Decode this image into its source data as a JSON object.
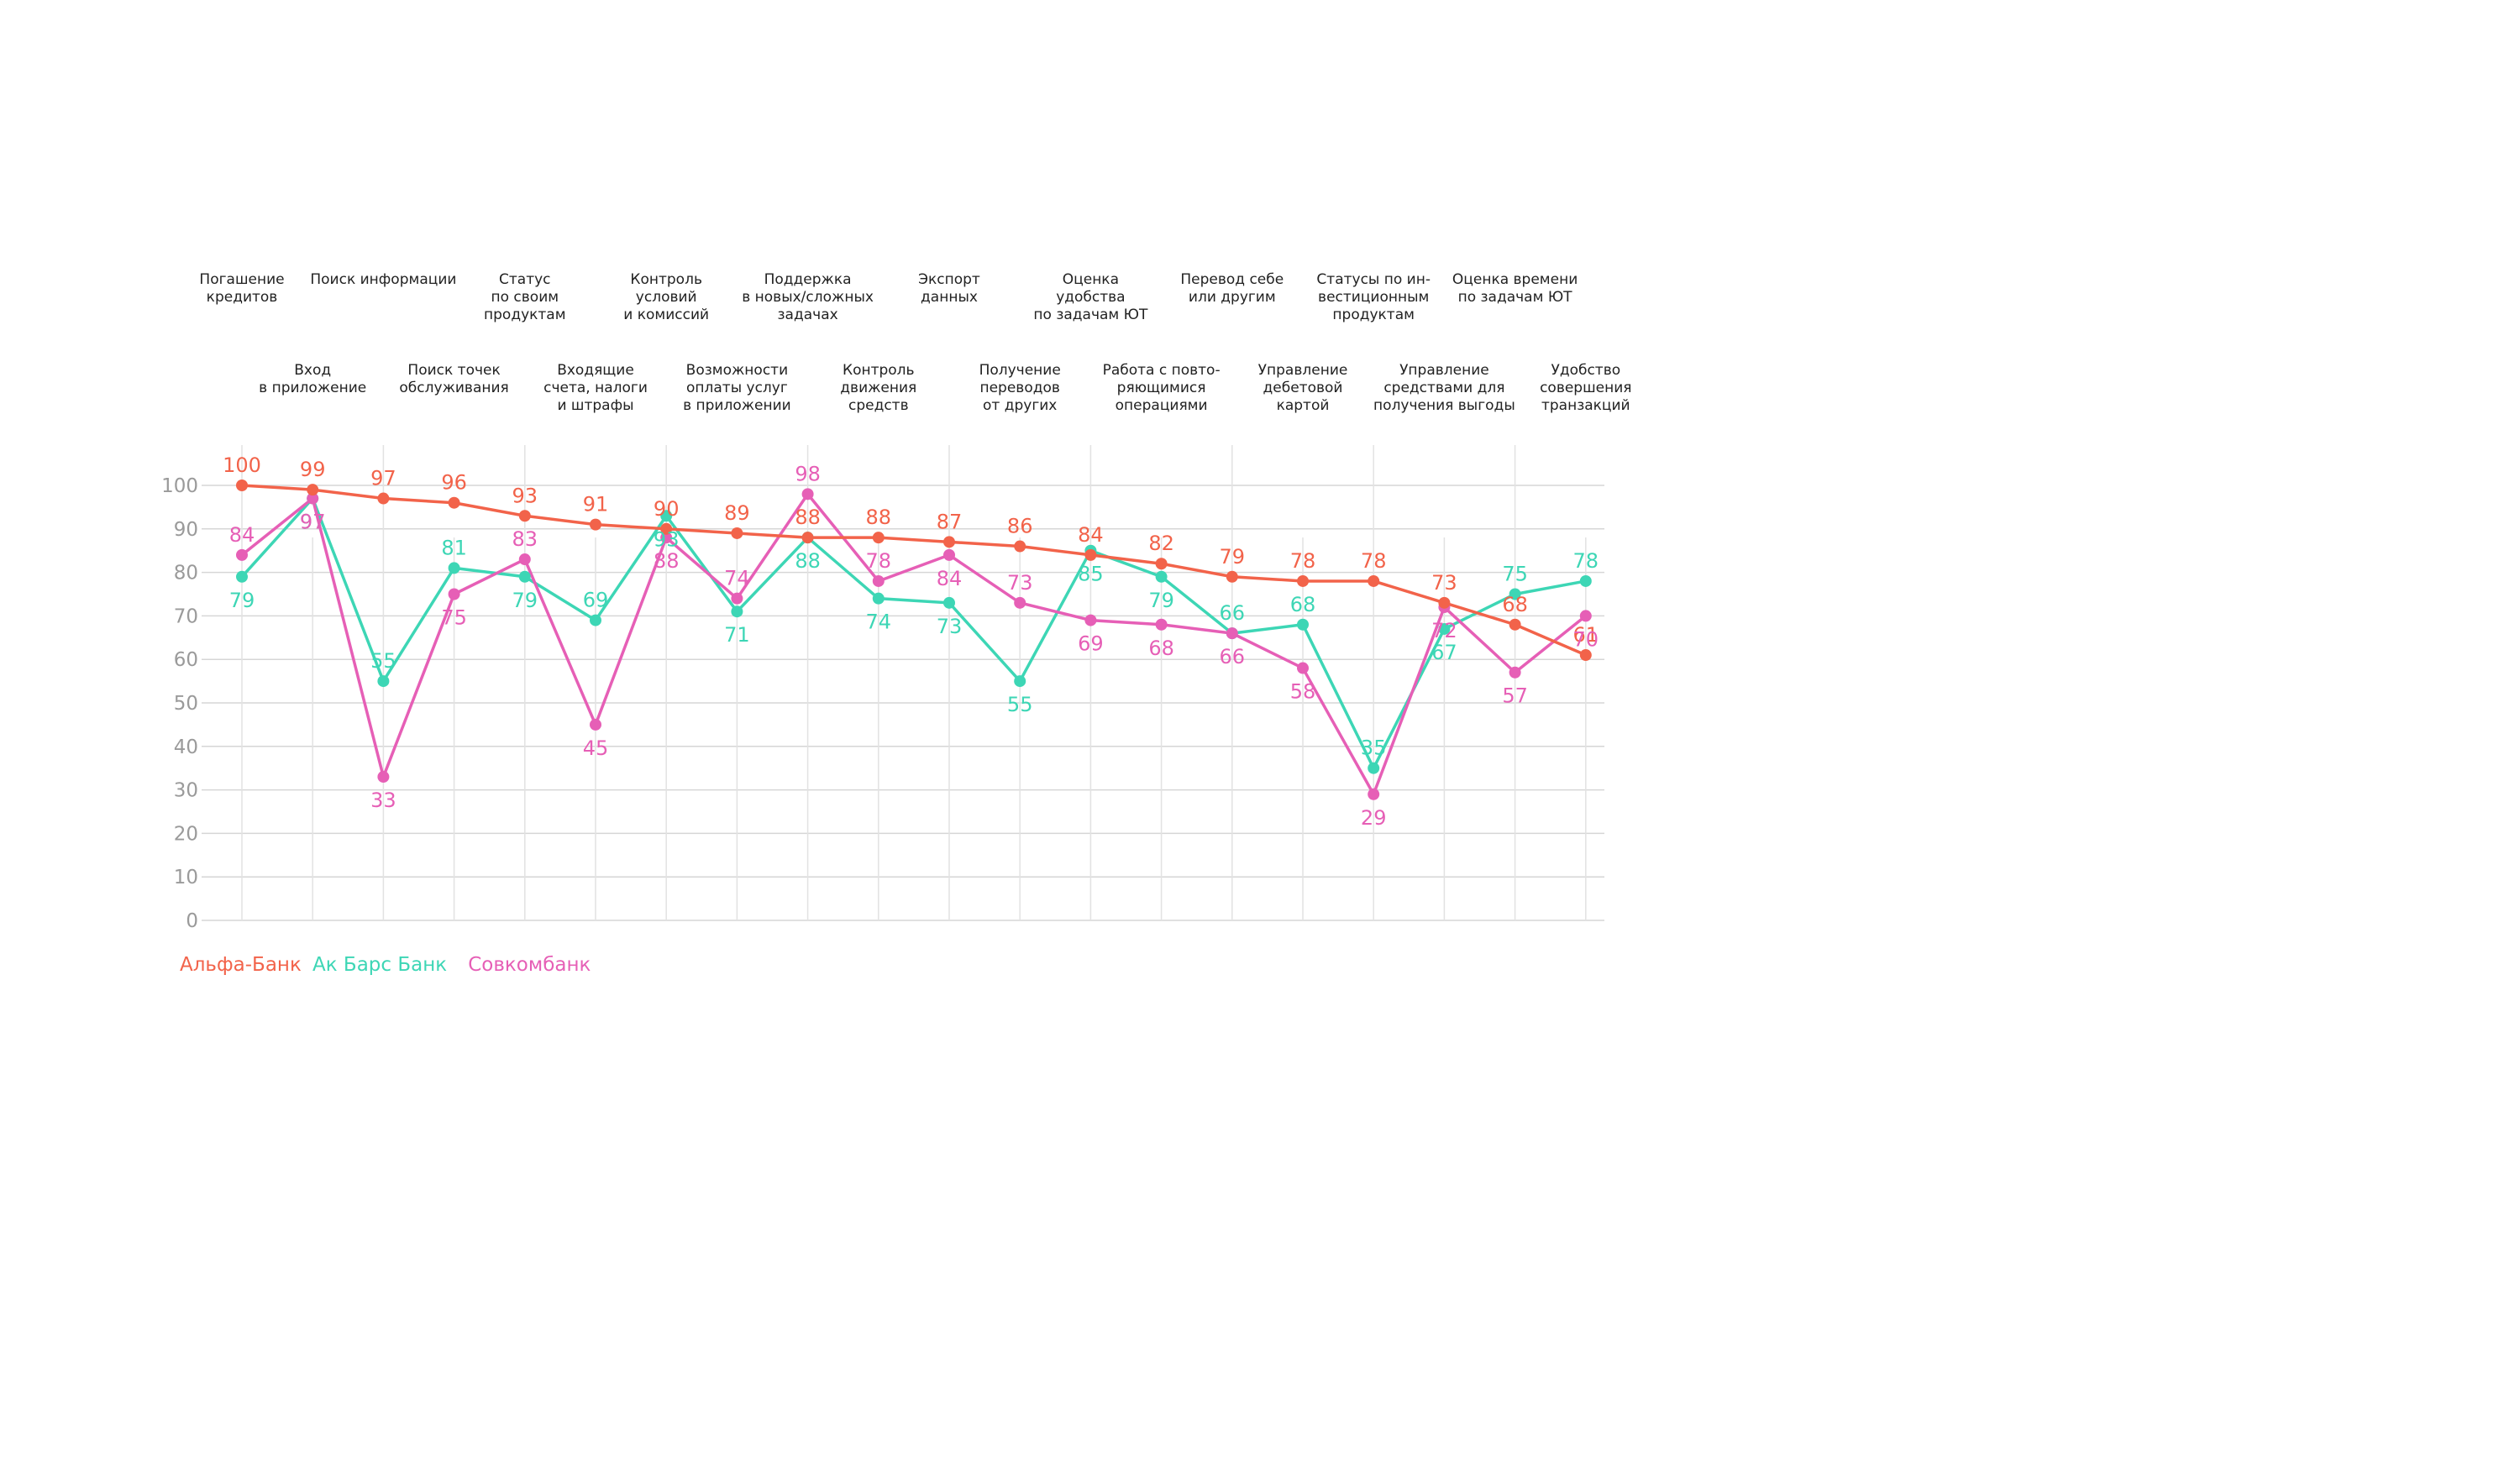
{
  "chart_data": {
    "type": "line",
    "title": "",
    "xlabel": "",
    "ylabel": "",
    "ylim": [
      0,
      100
    ],
    "yticks": [
      0,
      10,
      20,
      30,
      40,
      50,
      60,
      70,
      80,
      90,
      100
    ],
    "grid": true,
    "legend_position": "bottom-left",
    "categories": [
      "Погашение\nкредитов",
      "Вход\nв приложение",
      "Поиск информации",
      "Поиск точек\nобслуживания",
      "Статус\nпо своим\nпродуктам",
      "Входящие\nсчета, налоги\nи штрафы",
      "Контроль\nусловий\nи комиссий",
      "Возможности\nоплаты услуг\nв приложении",
      "Поддержка\nв новых/сложных\nзадачах",
      "Контроль\nдвижения\nсредств",
      "Экспорт\nданных",
      "Получение\nпереводов\nот других",
      "Оценка\nудобства\nпо задачам ЮТ",
      "Работа с повто-\nряющимися\nоперациями",
      "Перевод себе\nили другим",
      "Управление\nдебетовой\nкартой",
      "Статусы по ин-\nвестиционным\nпродуктам",
      "Управление\nсредствами для\nполучения выгоды",
      "Оценка времени\nпо задачам ЮТ",
      "Удобство\nсовершения\nтранзакций"
    ],
    "series": [
      {
        "name": "Альфа-Банк",
        "color": "#f2634a",
        "values": [
          100,
          99,
          97,
          96,
          93,
          91,
          90,
          89,
          88,
          88,
          87,
          86,
          84,
          82,
          79,
          78,
          78,
          73,
          68,
          61
        ]
      },
      {
        "name": "Ак Барс Банк",
        "color": "#3dd6b5",
        "values": [
          79,
          97,
          55,
          81,
          79,
          69,
          93,
          71,
          88,
          74,
          73,
          55,
          85,
          79,
          66,
          68,
          35,
          67,
          75,
          78
        ]
      },
      {
        "name": "Совкомбанк",
        "color": "#e65fb6",
        "values": [
          84,
          97,
          33,
          75,
          83,
          45,
          88,
          74,
          98,
          78,
          84,
          73,
          69,
          68,
          66,
          58,
          29,
          72,
          57,
          70
        ]
      }
    ]
  }
}
